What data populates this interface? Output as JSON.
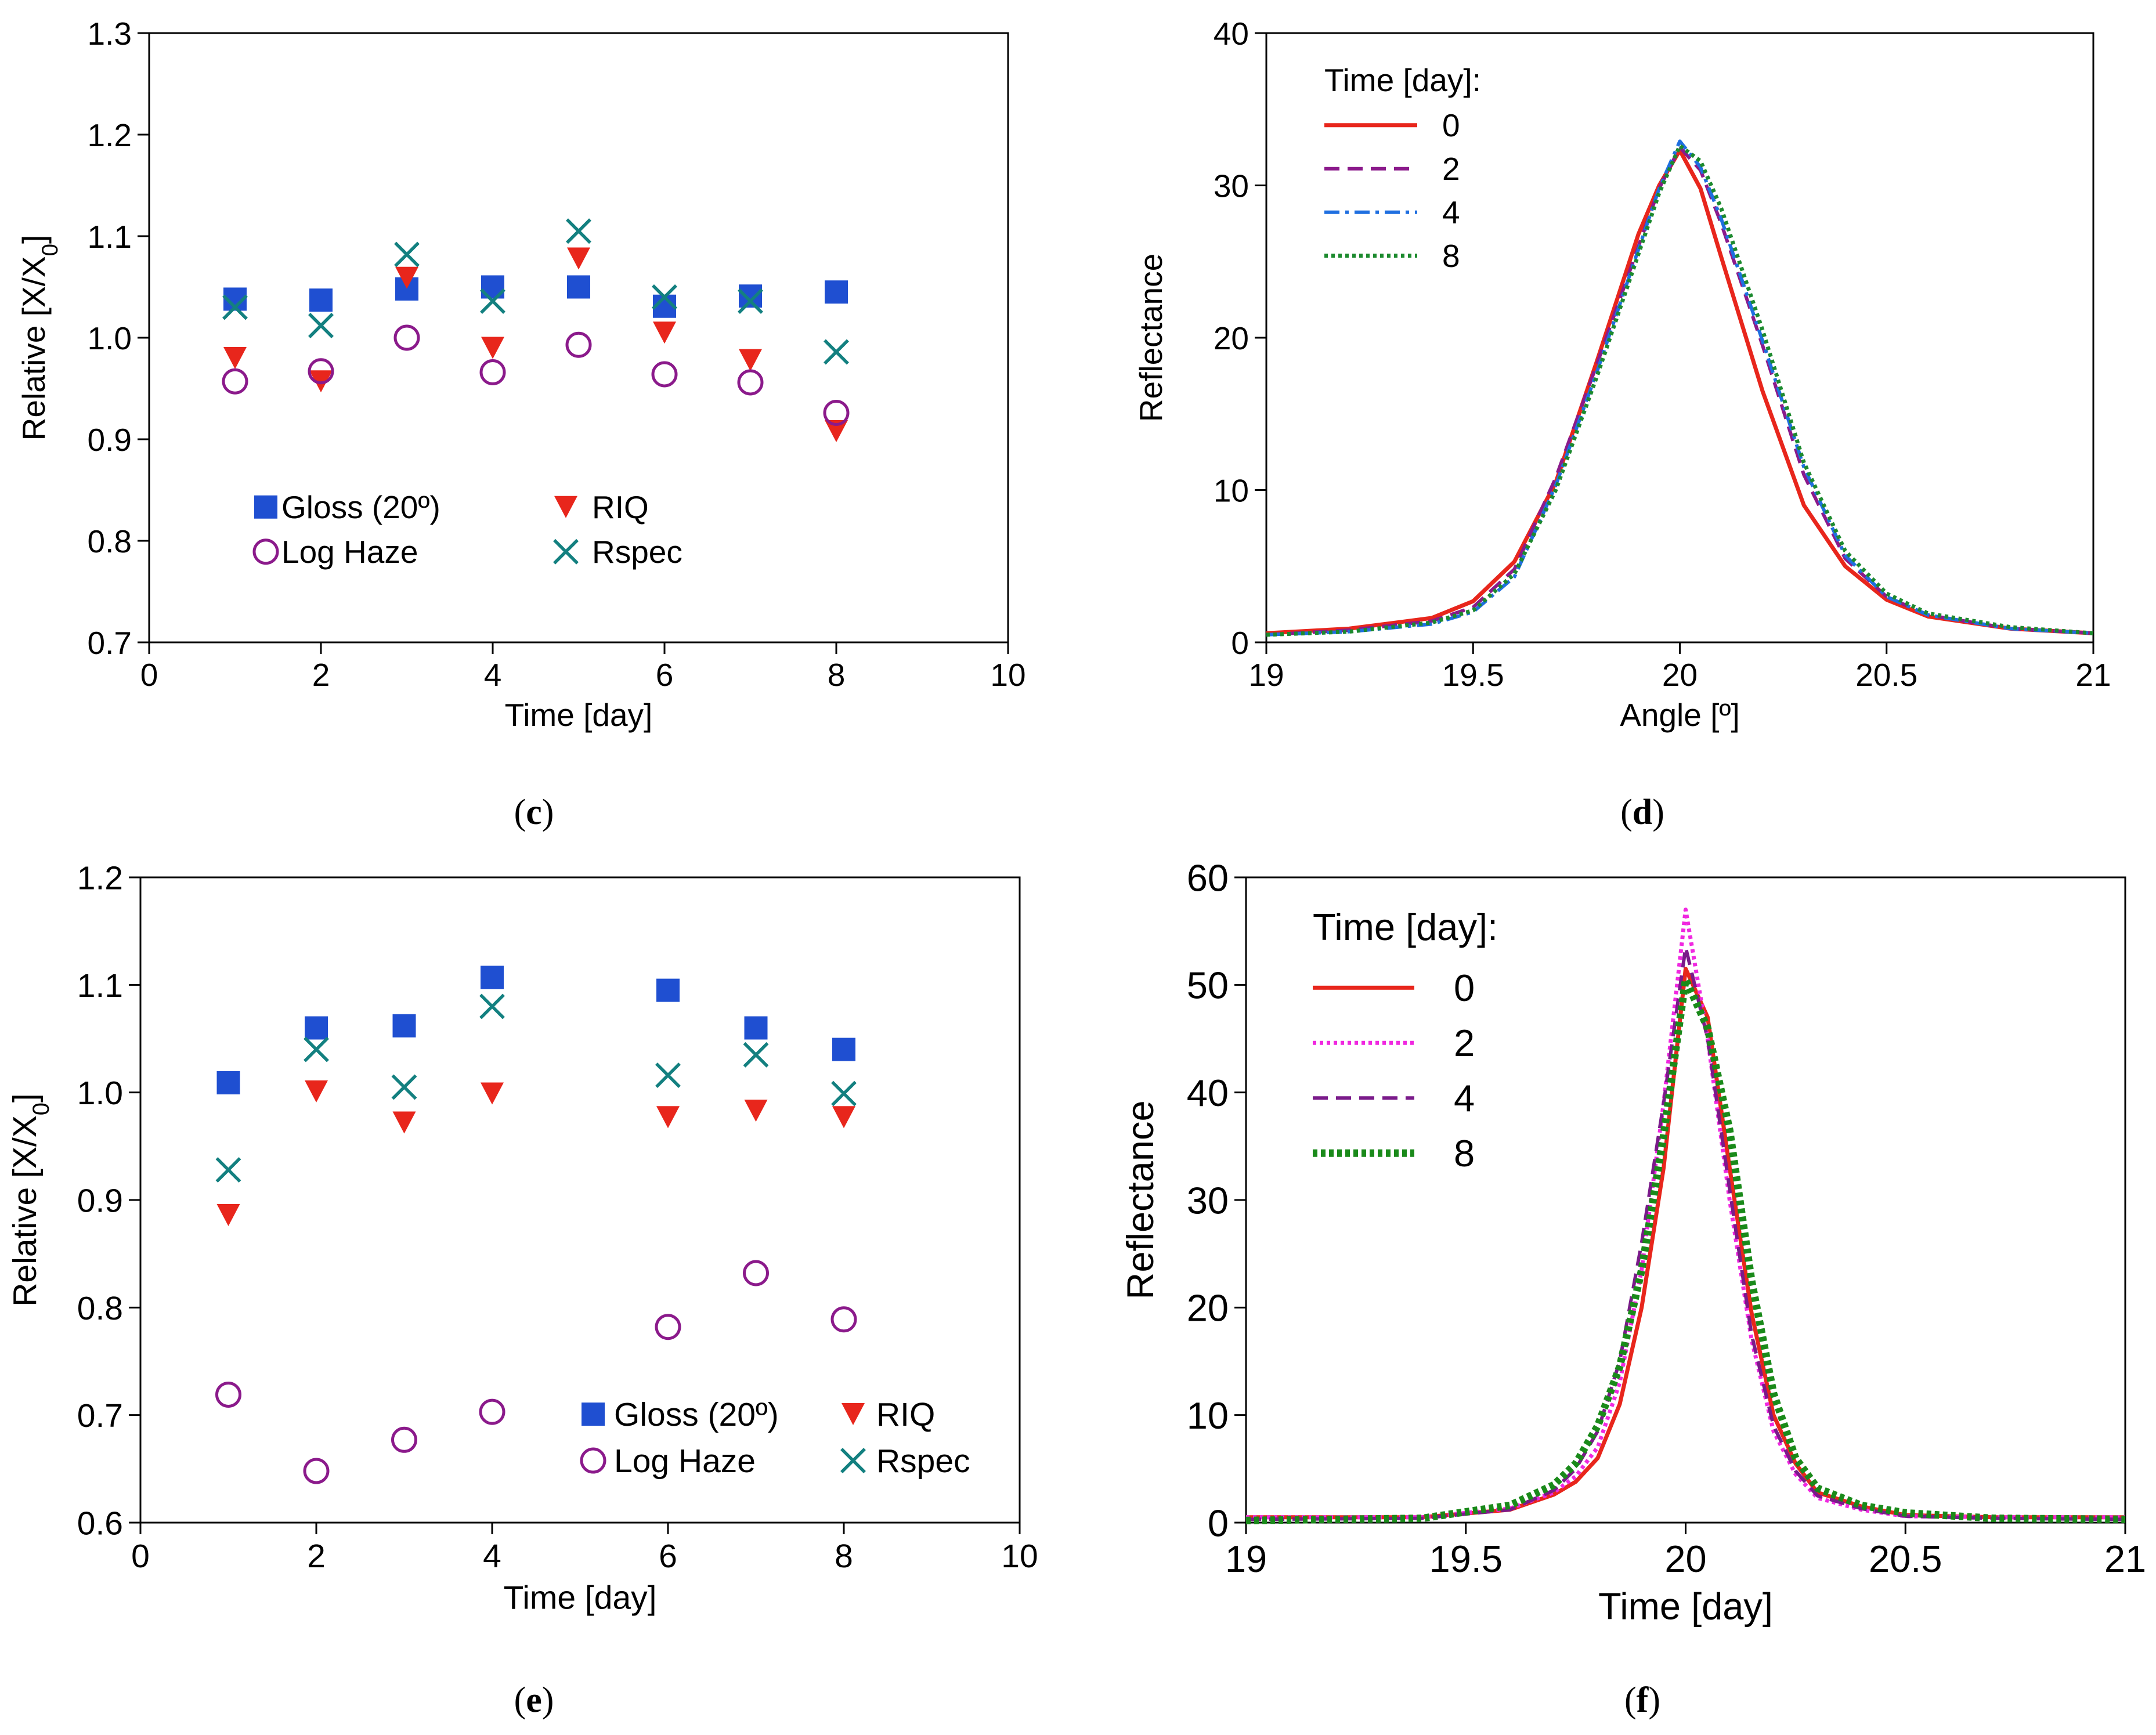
{
  "chart_data": [
    {
      "id": "c",
      "type": "scatter",
      "caption": "(c)",
      "caption_letter": "c",
      "xlabel": "Time [day]",
      "ylabel": "Relative [X/X0]",
      "xlim": [
        0,
        10
      ],
      "ylim": [
        0.7,
        1.3
      ],
      "xticks": [
        0,
        2,
        4,
        6,
        8,
        10
      ],
      "xtick_labels": [
        "0",
        "2",
        "4",
        "6",
        "8",
        "10"
      ],
      "yticks": [
        0.7,
        0.8,
        0.9,
        1.0,
        1.1,
        1.2,
        1.3
      ],
      "ytick_labels": [
        "0.7",
        "0.8",
        "0.9",
        "1.0",
        "1.1",
        "1.2",
        "1.3"
      ],
      "legend_position": "bottom-left",
      "series": [
        {
          "name": "Gloss (20º)",
          "marker": "square",
          "color": "#1f4fd1",
          "x": [
            1,
            2,
            3,
            4,
            5,
            6,
            7,
            8
          ],
          "y": [
            1.038,
            1.037,
            1.048,
            1.05,
            1.05,
            1.031,
            1.041,
            1.045
          ]
        },
        {
          "name": "RIQ",
          "marker": "triangle-down",
          "color": "#e8261c",
          "x": [
            1,
            2,
            3,
            4,
            5,
            6,
            7,
            8
          ],
          "y": [
            0.98,
            0.957,
            1.059,
            0.99,
            1.078,
            1.005,
            0.978,
            0.908
          ]
        },
        {
          "name": "Log Haze",
          "marker": "circle-open",
          "color": "#8b1a8b",
          "x": [
            1,
            2,
            3,
            4,
            5,
            6,
            7,
            8
          ],
          "y": [
            0.957,
            0.967,
            1.0,
            0.966,
            0.993,
            0.964,
            0.956,
            0.926
          ]
        },
        {
          "name": "Rspec",
          "marker": "x",
          "color": "#138080",
          "x": [
            1,
            2,
            3,
            4,
            5,
            6,
            7,
            8
          ],
          "y": [
            1.03,
            1.012,
            1.082,
            1.036,
            1.105,
            1.04,
            1.036,
            0.986
          ]
        }
      ]
    },
    {
      "id": "d",
      "type": "line",
      "caption": "(d)",
      "caption_letter": "d",
      "xlabel": "Angle [º]",
      "ylabel": "Reflectance",
      "xlim": [
        19,
        21
      ],
      "ylim": [
        0,
        40
      ],
      "xticks": [
        19,
        19.5,
        20,
        20.5,
        21
      ],
      "xtick_labels": [
        "19",
        "19.5",
        "20",
        "20.5",
        "21"
      ],
      "yticks": [
        0,
        10,
        20,
        30,
        40
      ],
      "ytick_labels": [
        "0",
        "10",
        "20",
        "30",
        "40"
      ],
      "legend_title": "Time [day]:",
      "legend_position": "top-left",
      "series": [
        {
          "name": "0",
          "style": "solid",
          "color": "#e8261c",
          "x": [
            19,
            19.2,
            19.4,
            19.5,
            19.6,
            19.7,
            19.8,
            19.9,
            19.95,
            20,
            20.05,
            20.1,
            20.2,
            20.3,
            20.4,
            20.5,
            20.6,
            20.8,
            21
          ],
          "y": [
            0.6,
            0.9,
            1.6,
            2.7,
            5.3,
            10.5,
            18.5,
            26.8,
            30,
            32.3,
            29.8,
            25.3,
            16.5,
            9.0,
            5.0,
            2.8,
            1.7,
            0.9,
            0.6
          ]
        },
        {
          "name": "2",
          "style": "dashed",
          "color": "#8b1a8b",
          "x": [
            19,
            19.2,
            19.4,
            19.5,
            19.6,
            19.7,
            19.8,
            19.9,
            19.95,
            20,
            20.05,
            20.1,
            20.2,
            20.3,
            20.4,
            20.5,
            20.6,
            20.8,
            21
          ],
          "y": [
            0.5,
            0.8,
            1.4,
            2.3,
            4.8,
            10.8,
            18.3,
            26.0,
            29.8,
            32.5,
            31.0,
            27.5,
            19.5,
            11.0,
            5.5,
            3.0,
            1.8,
            0.9,
            0.6
          ]
        },
        {
          "name": "4",
          "style": "dashdot",
          "color": "#1f6fe0",
          "x": [
            19,
            19.2,
            19.4,
            19.5,
            19.6,
            19.7,
            19.8,
            19.9,
            19.95,
            20,
            20.05,
            20.1,
            20.2,
            20.3,
            20.4,
            20.5,
            20.6,
            20.8,
            21
          ],
          "y": [
            0.5,
            0.7,
            1.2,
            2.0,
            4.3,
            10.3,
            17.8,
            25.8,
            29.8,
            32.9,
            31.2,
            27.8,
            19.8,
            11.5,
            5.7,
            3.0,
            1.8,
            0.9,
            0.6
          ]
        },
        {
          "name": "8",
          "style": "dotted",
          "color": "#1c8a2e",
          "x": [
            19,
            19.2,
            19.4,
            19.5,
            19.6,
            19.7,
            19.8,
            19.9,
            19.95,
            20,
            20.05,
            20.1,
            20.2,
            20.3,
            20.4,
            20.5,
            20.6,
            20.8,
            21
          ],
          "y": [
            0.5,
            0.7,
            1.3,
            2.1,
            4.5,
            10.0,
            17.5,
            25.5,
            29.5,
            32.6,
            31.6,
            28.5,
            20.5,
            11.8,
            6.0,
            3.2,
            1.9,
            1.0,
            0.6
          ]
        }
      ]
    },
    {
      "id": "e",
      "type": "scatter",
      "caption": "(e)",
      "caption_letter": "e",
      "xlabel": "Time [day]",
      "ylabel": "Relative [X/X0]",
      "xlim": [
        0,
        10
      ],
      "ylim": [
        0.6,
        1.2
      ],
      "xticks": [
        0,
        2,
        4,
        6,
        8,
        10
      ],
      "xtick_labels": [
        "0",
        "2",
        "4",
        "6",
        "8",
        "10"
      ],
      "yticks": [
        0.6,
        0.7,
        0.8,
        0.9,
        1.0,
        1.1,
        1.2
      ],
      "ytick_labels": [
        "0.6",
        "0.7",
        "0.8",
        "0.9",
        "1.0",
        "1.1",
        "1.2"
      ],
      "legend_position": "bottom-right",
      "series": [
        {
          "name": "Gloss (20º)",
          "marker": "square",
          "color": "#1f4fd1",
          "x": [
            1,
            2,
            3,
            4,
            6,
            7,
            8
          ],
          "y": [
            1.009,
            1.06,
            1.062,
            1.107,
            1.095,
            1.06,
            1.04
          ]
        },
        {
          "name": "RIQ",
          "marker": "triangle-down",
          "color": "#e8261c",
          "x": [
            1,
            2,
            3,
            4,
            6,
            7,
            8
          ],
          "y": [
            0.886,
            1.001,
            0.972,
            0.999,
            0.977,
            0.983,
            0.977
          ]
        },
        {
          "name": "Log Haze",
          "marker": "circle-open",
          "color": "#8b1a8b",
          "x": [
            1,
            2,
            3,
            4,
            6,
            7,
            8
          ],
          "y": [
            0.719,
            0.648,
            0.677,
            0.703,
            0.782,
            0.832,
            0.789
          ]
        },
        {
          "name": "Rspec",
          "marker": "x",
          "color": "#138080",
          "x": [
            1,
            2,
            3,
            4,
            6,
            7,
            8
          ],
          "y": [
            0.928,
            1.04,
            1.005,
            1.08,
            1.016,
            1.035,
            0.999
          ]
        }
      ]
    },
    {
      "id": "f",
      "type": "line",
      "caption": "(f)",
      "caption_letter": "f",
      "xlabel": "Time [day]",
      "ylabel": "Reflectance",
      "xlim": [
        19,
        21
      ],
      "ylim": [
        0,
        60
      ],
      "xticks": [
        19,
        19.5,
        20,
        20.5,
        21
      ],
      "xtick_labels": [
        "19",
        "19.5",
        "20",
        "20.5",
        "21"
      ],
      "yticks": [
        0,
        10,
        20,
        30,
        40,
        50,
        60
      ],
      "ytick_labels": [
        "0",
        "10",
        "20",
        "30",
        "40",
        "50",
        "60"
      ],
      "legend_title": "Time [day]:",
      "legend_position": "top-left",
      "series": [
        {
          "name": "0",
          "style": "solid",
          "color": "#e8261c",
          "x": [
            19,
            19.4,
            19.6,
            19.7,
            19.75,
            19.8,
            19.85,
            19.9,
            19.95,
            20,
            20.05,
            20.1,
            20.15,
            20.2,
            20.25,
            20.3,
            20.4,
            20.5,
            20.7,
            21
          ],
          "y": [
            0.5,
            0.5,
            1.2,
            2.6,
            3.8,
            6.0,
            11.0,
            20.0,
            33.0,
            51.5,
            47.0,
            33.0,
            19.5,
            10.0,
            5.5,
            2.8,
            1.5,
            0.7,
            0.5,
            0.5
          ]
        },
        {
          "name": "2",
          "style": "dotted",
          "color": "#f028e0",
          "x": [
            19,
            19.4,
            19.6,
            19.7,
            19.75,
            19.8,
            19.85,
            19.9,
            19.95,
            20,
            20.05,
            20.1,
            20.15,
            20.2,
            20.25,
            20.3,
            20.4,
            20.5,
            20.7,
            21
          ],
          "y": [
            0.5,
            0.5,
            1.3,
            2.8,
            4.3,
            7.0,
            13.0,
            23.5,
            39.0,
            57.0,
            45.0,
            30.0,
            17.0,
            8.5,
            4.5,
            2.3,
            1.2,
            0.6,
            0.5,
            0.5
          ]
        },
        {
          "name": "4",
          "style": "dashed",
          "color": "#7a1a8a",
          "x": [
            19,
            19.4,
            19.6,
            19.7,
            19.75,
            19.8,
            19.85,
            19.9,
            19.95,
            20,
            20.05,
            20.1,
            20.15,
            20.2,
            20.25,
            20.3,
            20.4,
            20.5,
            20.7,
            21
          ],
          "y": [
            0.3,
            0.4,
            1.2,
            3.0,
            5.0,
            8.5,
            15.0,
            26.0,
            39.0,
            53.5,
            45.0,
            31.0,
            17.5,
            9.0,
            4.8,
            2.5,
            1.3,
            0.6,
            0.4,
            0.3
          ]
        },
        {
          "name": "8",
          "style": "dotted-thick",
          "color": "#1a8a1a",
          "x": [
            19,
            19.4,
            19.6,
            19.7,
            19.75,
            19.8,
            19.85,
            19.9,
            19.95,
            20,
            20.05,
            20.1,
            20.15,
            20.2,
            20.25,
            20.3,
            20.4,
            20.5,
            20.7,
            21
          ],
          "y": [
            0.2,
            0.4,
            1.6,
            3.5,
            5.5,
            9.0,
            14.5,
            23.5,
            36.0,
            50.5,
            46.0,
            36.5,
            22.5,
            12.0,
            6.0,
            3.2,
            1.6,
            0.9,
            0.4,
            0.3
          ]
        }
      ]
    }
  ]
}
